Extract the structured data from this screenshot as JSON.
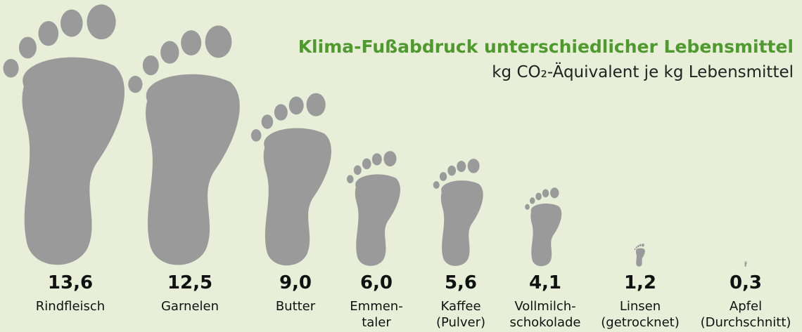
{
  "chart_data": {
    "type": "pictogram",
    "title": "Klima-Fußabdruck unterschiedlicher Lebensmittel",
    "subtitle": "kg CO₂-Äquivalent je kg Lebensmittel",
    "categories": [
      "Rindfleisch",
      "Garnelen",
      "Butter",
      "Emmen-\ntaler",
      "Kaffee\n(Pulver)",
      "Vollmilch-\nschokolade",
      "Linsen\n(getrocknet)",
      "Apfel\n(Durchschnitt)"
    ],
    "values": [
      13.6,
      12.5,
      9.0,
      6.0,
      5.6,
      4.1,
      1.2,
      0.3
    ],
    "value_labels": [
      "13,6",
      "12,5",
      "9,0",
      "6,0",
      "5,6",
      "4,1",
      "1,2",
      "0,3"
    ],
    "color": "#9a9a9a"
  }
}
